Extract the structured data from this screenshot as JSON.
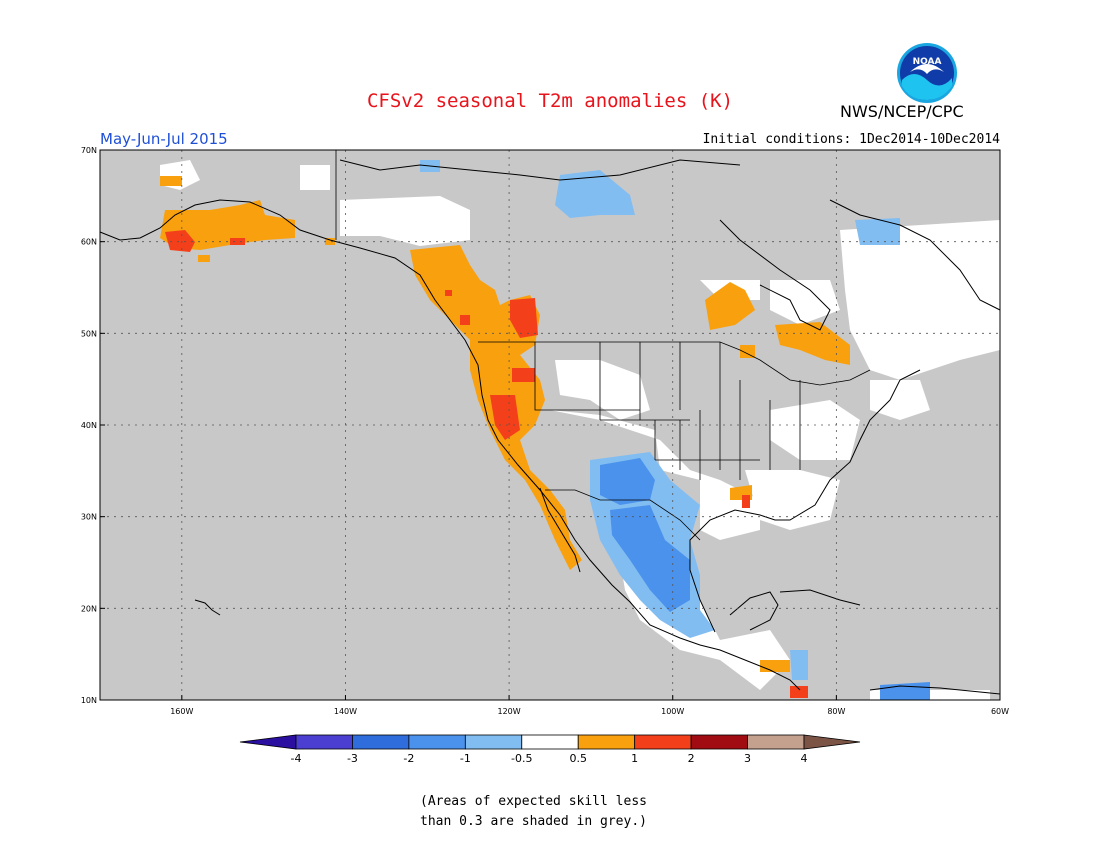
{
  "header": {
    "title": "CFSv2 seasonal T2m anomalies (K)",
    "organization": "NWS/NCEP/CPC",
    "season": "May-Jun-Jul 2015",
    "initial_conditions": "Initial conditions: 1Dec2014-10Dec2014"
  },
  "map": {
    "projection": "equirectangular",
    "lon_range": [
      -170,
      -60
    ],
    "lat_range": [
      10,
      70
    ],
    "lat_labels": [
      "10N",
      "20N",
      "30N",
      "40N",
      "50N",
      "60N",
      "70N"
    ],
    "lon_labels": [
      "160W",
      "140W",
      "120W",
      "100W",
      "80W",
      "60W"
    ],
    "background_color": "#c8c8c8"
  },
  "colorbar": {
    "colors": [
      "#2b0fa0",
      "#4a3fd0",
      "#2f6ddc",
      "#4a92ec",
      "#82bdf2",
      "#ffffff",
      "#f8a00e",
      "#f4401a",
      "#a00c12",
      "#c4a08e",
      "#7c5446"
    ],
    "labels": [
      "-4",
      "-3",
      "-2",
      "-1",
      "-0.5",
      "0.5",
      "1",
      "2",
      "3",
      "4"
    ]
  },
  "footnote": {
    "line1": "(Areas of expected skill less",
    "line2": "than 0.3 are shaded in grey.)"
  },
  "logo": {
    "text": "NOAA"
  }
}
